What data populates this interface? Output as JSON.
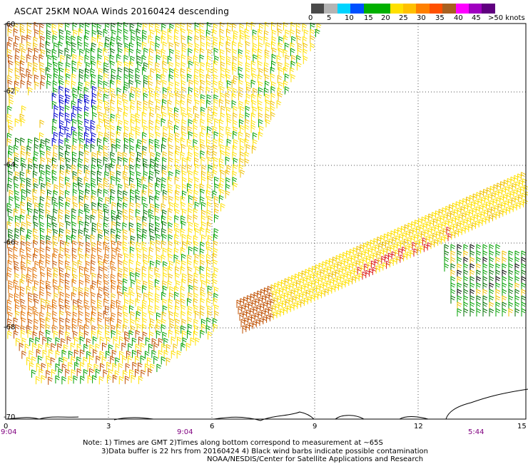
{
  "title": "ASCAT 25KM NOAA Winds 20160424 descending",
  "colorbar": {
    "colors": [
      "#4a4a4a",
      "#b4b4b4",
      "#00d4ff",
      "#0050ff",
      "#00b000",
      "#00b000",
      "#ffe000",
      "#ffc000",
      "#ff8000",
      "#ff5000",
      "#a86020",
      "#ff00ff",
      "#a000c0",
      "#600080"
    ],
    "labels": [
      "0",
      "5",
      "10",
      "15",
      "20",
      "25",
      "30",
      "35",
      "40",
      "45",
      ">50 knots"
    ]
  },
  "axes": {
    "lat_labels": [
      "-60",
      "-62",
      "-64",
      "-66",
      "-68",
      "-70"
    ],
    "lon_labels": [
      "0",
      "3",
      "6",
      "9",
      "12",
      "15"
    ],
    "time_labels": [
      "9:04",
      "9:04",
      "5:44"
    ]
  },
  "notes": {
    "line1": "Note: 1) Times are GMT 2)Times along bottom correspond to measurement at ~65S",
    "line2": "3)Data buffer is 22 hrs from 20160424 4) Black wind barbs indicate possible contamination",
    "line3": "NOAA/NESDIS/Center for Satellite Applications and Research"
  },
  "wind_colors": {
    "blue": "#0000cc",
    "green": "#00a000",
    "darkgreen": "#007000",
    "yellow": "#ffe000",
    "gold": "#f0c000",
    "orange": "#e07000",
    "darkorange": "#c05000",
    "red": "#dd2020",
    "black": "#000000"
  }
}
